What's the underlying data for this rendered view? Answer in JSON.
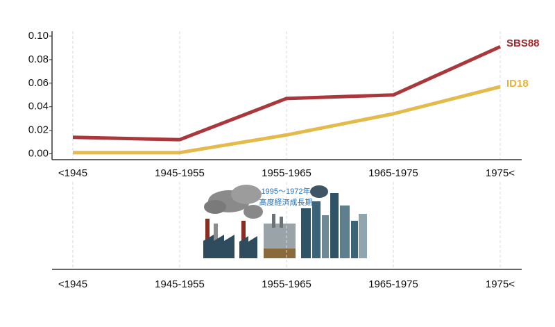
{
  "chart_data": {
    "type": "line",
    "categories": [
      "<1945",
      "1945-1955",
      "1955-1965",
      "1965-1975",
      "1975<"
    ],
    "series": [
      {
        "name": "SBS88",
        "color": "#a3262a",
        "values": [
          0.014,
          0.012,
          0.047,
          0.05,
          0.091
        ]
      },
      {
        "name": "ID18",
        "color": "#e2b43c",
        "values": [
          0.001,
          0.001,
          0.016,
          0.034,
          0.057
        ]
      }
    ],
    "ylim": [
      -0.005,
      0.1
    ],
    "yticks": [
      {
        "value": 0,
        "label": "0.00"
      },
      {
        "value": 0.02,
        "label": "0.02"
      },
      {
        "value": 0.04,
        "label": "0.04"
      },
      {
        "value": 0.06,
        "label": "0.06"
      },
      {
        "value": 0.08,
        "label": "0.08"
      },
      {
        "value": 0.1,
        "label": "0.10"
      }
    ],
    "grid": true,
    "annotations": [
      "1995～1972年",
      "高度経済成長期"
    ]
  }
}
